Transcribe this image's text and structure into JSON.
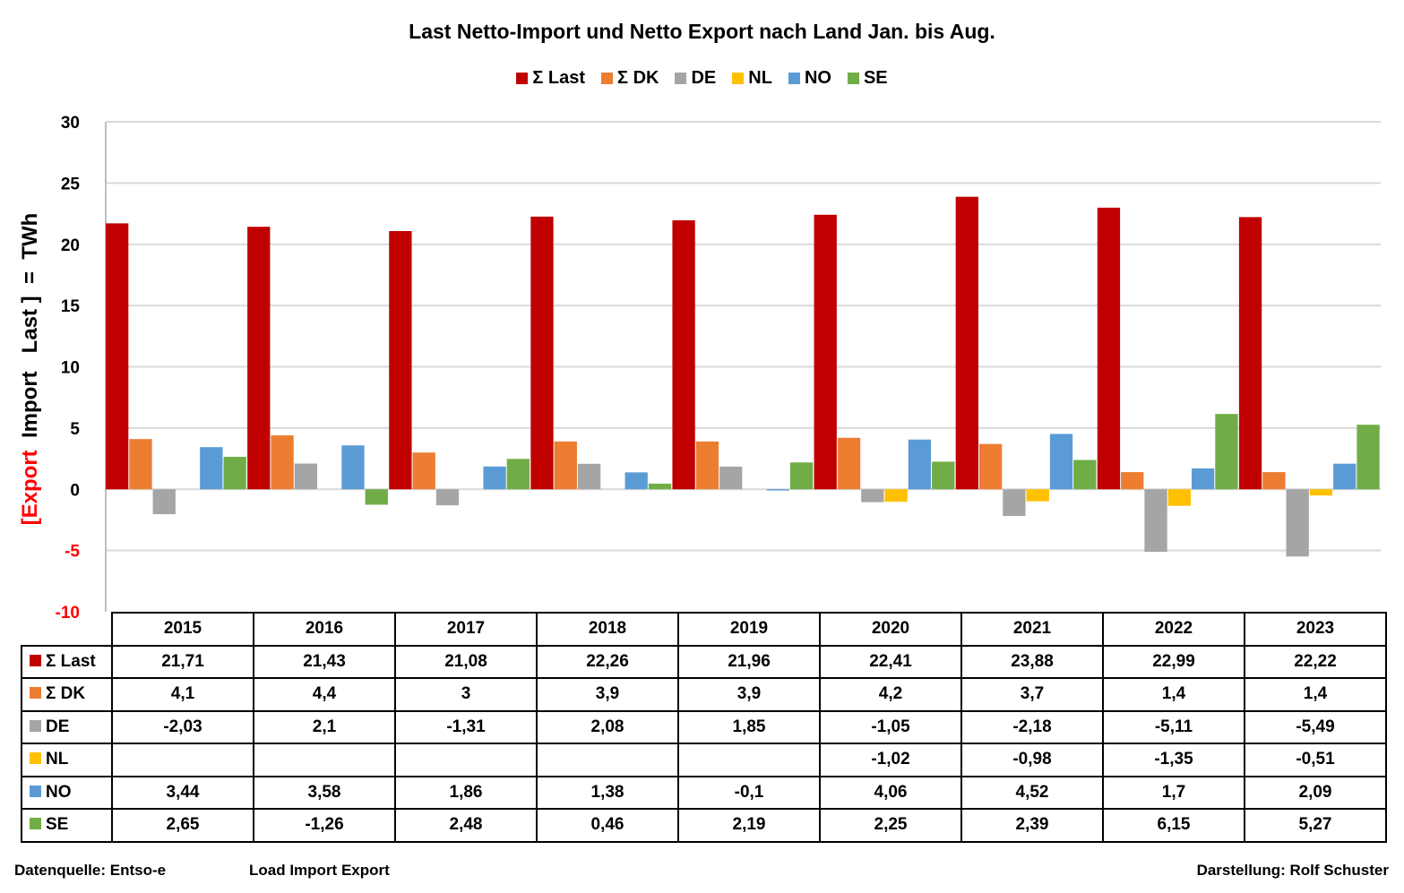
{
  "chart_data": {
    "type": "bar",
    "title": "Last   Netto-Import und Netto Export nach Land  Jan. bis  Aug.",
    "ylabel_parts": [
      {
        "text": "[Export",
        "color": "#ff0000"
      },
      {
        "text": "  Import   Last ]  =  TWh",
        "color": "#000000"
      }
    ],
    "xlabel": "",
    "ylim": [
      -10,
      30
    ],
    "yticks": [
      30,
      25,
      20,
      15,
      10,
      5,
      0,
      -5,
      -10
    ],
    "grid": true,
    "legend_position": "top-center",
    "categories": [
      "2015",
      "2016",
      "2017",
      "2018",
      "2019",
      "2020",
      "2021",
      "2022",
      "2023"
    ],
    "series": [
      {
        "name": "Σ Last",
        "color": "#c00000",
        "values": [
          21.71,
          21.43,
          21.08,
          22.26,
          21.96,
          22.41,
          23.88,
          22.99,
          22.22
        ],
        "labels": [
          "21,71",
          "21,43",
          "21,08",
          "22,26",
          "21,96",
          "22,41",
          "23,88",
          "22,99",
          "22,22"
        ]
      },
      {
        "name": "Σ DK",
        "color": "#ed7d31",
        "values": [
          4.1,
          4.4,
          3,
          3.9,
          3.9,
          4.2,
          3.7,
          1.4,
          1.4
        ],
        "labels": [
          "4,1",
          "4,4",
          "3",
          "3,9",
          "3,9",
          "4,2",
          "3,7",
          "1,4",
          "1,4"
        ]
      },
      {
        "name": "DE",
        "color": "#a5a5a5",
        "values": [
          -2.03,
          2.1,
          -1.31,
          2.08,
          1.85,
          -1.05,
          -2.18,
          -5.11,
          -5.49
        ],
        "labels": [
          "-2,03",
          "2,1",
          "-1,31",
          "2,08",
          "1,85",
          "-1,05",
          "-2,18",
          "-5,11",
          "-5,49"
        ]
      },
      {
        "name": "NL",
        "color": "#ffc000",
        "values": [
          null,
          null,
          null,
          null,
          null,
          -1.02,
          -0.98,
          -1.35,
          -0.51
        ],
        "labels": [
          "",
          "",
          "",
          "",
          "",
          "-1,02",
          "-0,98",
          "-1,35",
          "-0,51"
        ]
      },
      {
        "name": "NO",
        "color": "#5b9bd5",
        "values": [
          3.44,
          3.58,
          1.86,
          1.38,
          -0.1,
          4.06,
          4.52,
          1.7,
          2.09
        ],
        "labels": [
          "3,44",
          "3,58",
          "1,86",
          "1,38",
          "-0,1",
          "4,06",
          "4,52",
          "1,7",
          "2,09"
        ]
      },
      {
        "name": "SE",
        "color": "#70ad47",
        "values": [
          2.65,
          -1.26,
          2.48,
          0.46,
          2.19,
          2.25,
          2.39,
          6.15,
          5.27
        ],
        "labels": [
          "2,65",
          "-1,26",
          "2,48",
          "0,46",
          "2,19",
          "2,25",
          "2,39",
          "6,15",
          "5,27"
        ]
      }
    ],
    "data_table": true
  },
  "footer": {
    "source": "Datenquelle: Entso-e",
    "note": "Load  Import   Export",
    "author": "Darstellung: Rolf Schuster"
  }
}
